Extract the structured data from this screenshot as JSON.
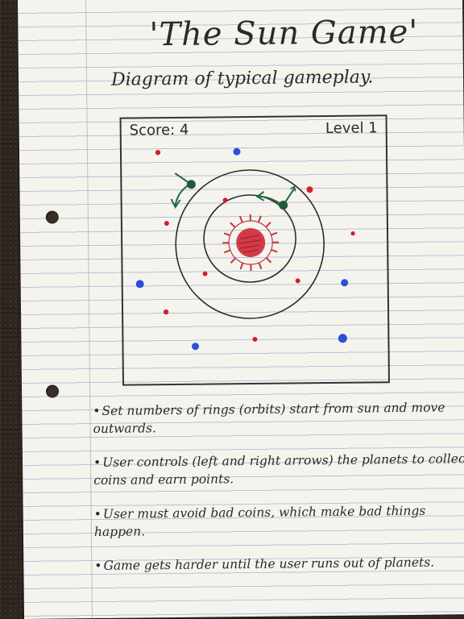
{
  "page": {
    "title": "'The Sun Game'",
    "subtitle": "Diagram of typical gameplay."
  },
  "game": {
    "score_label": "Score: 4",
    "level_label": "Level 1",
    "colors": {
      "outline": "#2b2b2b",
      "sun_fill": "#d33a48",
      "sun_rays": "#c8343f",
      "planet": "#1f5a3a",
      "arrow": "#1f6a3e",
      "good_coin": "#2a4fd8",
      "bad_coin": "#d11f2e"
    },
    "planets": [
      {
        "name": "planet-outer-orbit",
        "direction": "left"
      },
      {
        "name": "planet-inner-orbit",
        "direction": "right"
      }
    ]
  },
  "notes": [
    {
      "bullet": "•",
      "text": "Set numbers of rings (orbits) start from sun and move outwards."
    },
    {
      "bullet": "•",
      "text": "User controls (left and right arrows) the planets to collect coins and earn points."
    },
    {
      "bullet": "•",
      "text": "User must avoid bad coins, which make bad things happen."
    },
    {
      "bullet": "•",
      "text": "Game gets harder until the user runs out of planets."
    }
  ]
}
